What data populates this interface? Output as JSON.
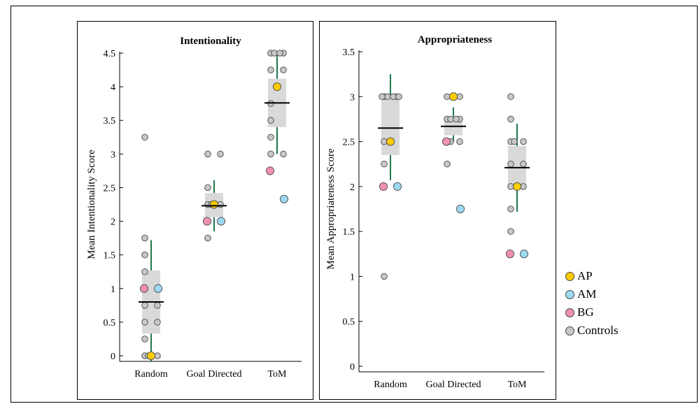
{
  "chart_data": [
    {
      "type": "scatter",
      "title": "Intentionality",
      "xlabel": "",
      "ylabel": "Mean Intentionality Score",
      "categories": [
        "Random",
        "Goal Directed",
        "ToM"
      ],
      "ylim": [
        0,
        4.5
      ],
      "yticks": [
        0,
        0.5,
        1,
        1.5,
        2,
        2.5,
        3,
        3.5,
        4,
        4.5
      ],
      "ytick_labels": [
        "0",
        "0.5",
        "1",
        "1.5",
        "2",
        "2.5",
        "3",
        "3.5",
        "4",
        "4.5"
      ],
      "summary": [
        {
          "category": "Random",
          "mean": 0.8,
          "box_low": 0.33,
          "box_high": 1.27,
          "whisker_low": -0.08,
          "whisker_high": 1.72
        },
        {
          "category": "Goal Directed",
          "mean": 2.23,
          "box_low": 2.06,
          "box_high": 2.42,
          "whisker_low": 1.85,
          "whisker_high": 2.61
        },
        {
          "category": "ToM",
          "mean": 3.76,
          "box_low": 3.4,
          "box_high": 4.12,
          "whisker_low": 3.0,
          "whisker_high": 4.5
        }
      ],
      "series": [
        {
          "name": "Controls",
          "points": [
            {
              "category": "Random",
              "y": 3.25
            },
            {
              "category": "Random",
              "y": 1.75
            },
            {
              "category": "Random",
              "y": 1.5
            },
            {
              "category": "Random",
              "y": 1.25
            },
            {
              "category": "Random",
              "y": 0.75
            },
            {
              "category": "Random",
              "y": 0.75
            },
            {
              "category": "Random",
              "y": 0.5
            },
            {
              "category": "Random",
              "y": 0.5
            },
            {
              "category": "Random",
              "y": 0.25
            },
            {
              "category": "Random",
              "y": 0
            },
            {
              "category": "Random",
              "y": 0
            },
            {
              "category": "Random",
              "y": 0
            },
            {
              "category": "Goal Directed",
              "y": 3
            },
            {
              "category": "Goal Directed",
              "y": 3
            },
            {
              "category": "Goal Directed",
              "y": 2.5
            },
            {
              "category": "Goal Directed",
              "y": 2.25
            },
            {
              "category": "Goal Directed",
              "y": 2.25
            },
            {
              "category": "Goal Directed",
              "y": 2.25
            },
            {
              "category": "Goal Directed",
              "y": 2
            },
            {
              "category": "Goal Directed",
              "y": 2
            },
            {
              "category": "Goal Directed",
              "y": 1.75
            },
            {
              "category": "ToM",
              "y": 4.5
            },
            {
              "category": "ToM",
              "y": 4.5
            },
            {
              "category": "ToM",
              "y": 4.5
            },
            {
              "category": "ToM",
              "y": 4.5
            },
            {
              "category": "ToM",
              "y": 4.25
            },
            {
              "category": "ToM",
              "y": 4.25
            },
            {
              "category": "ToM",
              "y": 3.75
            },
            {
              "category": "ToM",
              "y": 3.5
            },
            {
              "category": "ToM",
              "y": 3.25
            },
            {
              "category": "ToM",
              "y": 3
            },
            {
              "category": "ToM",
              "y": 3
            },
            {
              "category": "ToM",
              "y": 2.75
            }
          ]
        },
        {
          "name": "AP",
          "points": [
            {
              "category": "Random",
              "y": 0
            },
            {
              "category": "Goal Directed",
              "y": 2.25
            },
            {
              "category": "ToM",
              "y": 4
            }
          ]
        },
        {
          "name": "AM",
          "points": [
            {
              "category": "Random",
              "y": 1
            },
            {
              "category": "Goal Directed",
              "y": 2
            },
            {
              "category": "ToM",
              "y": 2.33
            }
          ]
        },
        {
          "name": "BG",
          "points": [
            {
              "category": "Random",
              "y": 1
            },
            {
              "category": "Goal Directed",
              "y": 2
            },
            {
              "category": "ToM",
              "y": 2.75
            }
          ]
        }
      ]
    },
    {
      "type": "scatter",
      "title": "Appropriateness",
      "xlabel": "",
      "ylabel": "Mean Appropriateness Score",
      "categories": [
        "Random",
        "Goal Directed",
        "ToM"
      ],
      "ylim": [
        0,
        3.5
      ],
      "yticks": [
        0,
        0.5,
        1,
        1.5,
        2,
        2.5,
        3,
        3.5
      ],
      "ytick_labels": [
        "0",
        "0.5",
        "1",
        "1.5",
        "2",
        "2.5",
        "3",
        "3.5"
      ],
      "summary": [
        {
          "category": "Random",
          "mean": 2.65,
          "box_low": 2.35,
          "box_high": 2.98,
          "whisker_low": 2.07,
          "whisker_high": 3.25
        },
        {
          "category": "Goal Directed",
          "mean": 2.67,
          "box_low": 2.57,
          "box_high": 2.78,
          "whisker_low": 2.5,
          "whisker_high": 2.88
        },
        {
          "category": "ToM",
          "mean": 2.21,
          "box_low": 1.97,
          "box_high": 2.45,
          "whisker_low": 1.72,
          "whisker_high": 2.7
        }
      ],
      "series": [
        {
          "name": "Controls",
          "points": [
            {
              "category": "Random",
              "y": 3
            },
            {
              "category": "Random",
              "y": 3
            },
            {
              "category": "Random",
              "y": 3
            },
            {
              "category": "Random",
              "y": 3
            },
            {
              "category": "Random",
              "y": 3
            },
            {
              "category": "Random",
              "y": 3
            },
            {
              "category": "Random",
              "y": 2.5
            },
            {
              "category": "Random",
              "y": 2.25
            },
            {
              "category": "Random",
              "y": 2
            },
            {
              "category": "Random",
              "y": 1
            },
            {
              "category": "Goal Directed",
              "y": 3
            },
            {
              "category": "Goal Directed",
              "y": 3
            },
            {
              "category": "Goal Directed",
              "y": 2.75
            },
            {
              "category": "Goal Directed",
              "y": 2.75
            },
            {
              "category": "Goal Directed",
              "y": 2.75
            },
            {
              "category": "Goal Directed",
              "y": 2.75
            },
            {
              "category": "Goal Directed",
              "y": 2.5
            },
            {
              "category": "Goal Directed",
              "y": 2.5
            },
            {
              "category": "Goal Directed",
              "y": 2.5
            },
            {
              "category": "Goal Directed",
              "y": 2.25
            },
            {
              "category": "ToM",
              "y": 3
            },
            {
              "category": "ToM",
              "y": 2.75
            },
            {
              "category": "ToM",
              "y": 2.5
            },
            {
              "category": "ToM",
              "y": 2.5
            },
            {
              "category": "ToM",
              "y": 2.5
            },
            {
              "category": "ToM",
              "y": 2.25
            },
            {
              "category": "ToM",
              "y": 2.25
            },
            {
              "category": "ToM",
              "y": 2
            },
            {
              "category": "ToM",
              "y": 2
            },
            {
              "category": "ToM",
              "y": 1.75
            },
            {
              "category": "ToM",
              "y": 1.5
            }
          ]
        },
        {
          "name": "AP",
          "points": [
            {
              "category": "Random",
              "y": 2.5
            },
            {
              "category": "Goal Directed",
              "y": 3
            },
            {
              "category": "ToM",
              "y": 2
            }
          ]
        },
        {
          "name": "AM",
          "points": [
            {
              "category": "Random",
              "y": 2
            },
            {
              "category": "Goal Directed",
              "y": 1.75
            },
            {
              "category": "ToM",
              "y": 1.25
            }
          ]
        },
        {
          "name": "BG",
          "points": [
            {
              "category": "Random",
              "y": 2
            },
            {
              "category": "Goal Directed",
              "y": 2.5
            },
            {
              "category": "ToM",
              "y": 1.25
            }
          ]
        }
      ]
    }
  ],
  "legend": {
    "items": [
      {
        "label": "AP",
        "color": "#FFCC00"
      },
      {
        "label": "AM",
        "color": "#9DD9F3"
      },
      {
        "label": "BG",
        "color": "#F090B0"
      },
      {
        "label": "Controls",
        "color": "#C8C8C8"
      }
    ]
  },
  "style": {
    "box_fill": "#D9D9D9",
    "whisker_color": "#1E7A4E",
    "mean_color": "#000000",
    "control_fill": "#C8C8C8",
    "marker_stroke": "#555555"
  }
}
